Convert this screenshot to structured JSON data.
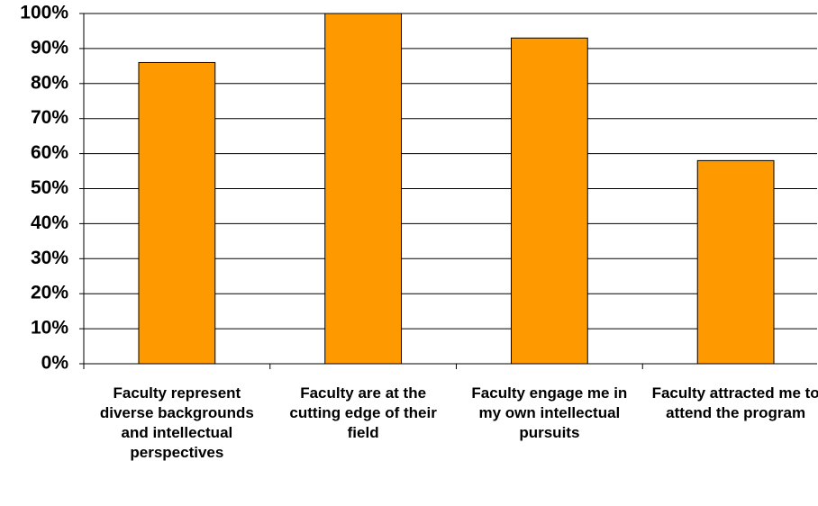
{
  "chart_data": {
    "type": "bar",
    "categories": [
      "Faculty represent diverse backgrounds and intellectual perspectives",
      "Faculty are at the cutting edge of their field",
      "Faculty engage me in my own intellectual pursuits",
      "Faculty attracted me to attend the program"
    ],
    "values": [
      86,
      100,
      93,
      58
    ],
    "color": "#ff9900",
    "ylim": [
      0,
      100
    ],
    "yticks": [
      {
        "value": 0,
        "label": "0%"
      },
      {
        "value": 10,
        "label": "10%"
      },
      {
        "value": 20,
        "label": "20%"
      },
      {
        "value": 30,
        "label": "30%"
      },
      {
        "value": 40,
        "label": "40%"
      },
      {
        "value": 50,
        "label": "50%"
      },
      {
        "value": 60,
        "label": "60%"
      },
      {
        "value": 70,
        "label": "70%"
      },
      {
        "value": 80,
        "label": "80%"
      },
      {
        "value": 90,
        "label": "90%"
      },
      {
        "value": 100,
        "label": "100%"
      }
    ],
    "grid": true
  }
}
